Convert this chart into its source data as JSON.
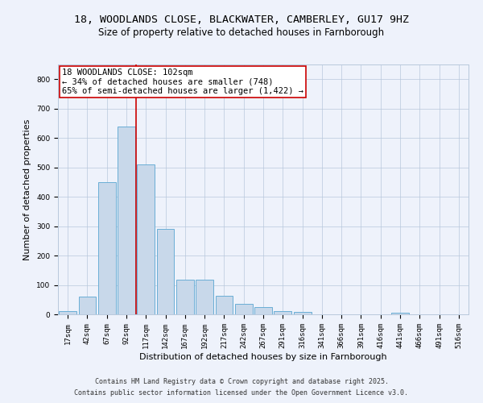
{
  "title_line1": "18, WOODLANDS CLOSE, BLACKWATER, CAMBERLEY, GU17 9HZ",
  "title_line2": "Size of property relative to detached houses in Farnborough",
  "xlabel": "Distribution of detached houses by size in Farnborough",
  "ylabel": "Number of detached properties",
  "bin_labels": [
    "17sqm",
    "42sqm",
    "67sqm",
    "92sqm",
    "117sqm",
    "142sqm",
    "167sqm",
    "192sqm",
    "217sqm",
    "242sqm",
    "267sqm",
    "291sqm",
    "316sqm",
    "341sqm",
    "366sqm",
    "391sqm",
    "416sqm",
    "441sqm",
    "466sqm",
    "491sqm",
    "516sqm"
  ],
  "bar_values": [
    10,
    60,
    450,
    640,
    510,
    290,
    118,
    118,
    62,
    37,
    25,
    10,
    7,
    0,
    0,
    0,
    0,
    5,
    0,
    0,
    0
  ],
  "bar_color": "#c8d8ea",
  "bar_edge_color": "#6aaed6",
  "background_color": "#eef2fb",
  "grid_color": "#b8c8dc",
  "vline_color": "#cc0000",
  "annotation_text": "18 WOODLANDS CLOSE: 102sqm\n← 34% of detached houses are smaller (748)\n65% of semi-detached houses are larger (1,422) →",
  "annotation_box_color": "#ffffff",
  "annotation_box_edge": "#cc0000",
  "ylim": [
    0,
    850
  ],
  "yticks": [
    0,
    100,
    200,
    300,
    400,
    500,
    600,
    700,
    800
  ],
  "footnote_line1": "Contains HM Land Registry data © Crown copyright and database right 2025.",
  "footnote_line2": "Contains public sector information licensed under the Open Government Licence v3.0.",
  "title_fontsize": 9.5,
  "subtitle_fontsize": 8.5,
  "axis_label_fontsize": 8,
  "tick_fontsize": 6.5,
  "annotation_fontsize": 7.5,
  "footnote_fontsize": 6.0
}
